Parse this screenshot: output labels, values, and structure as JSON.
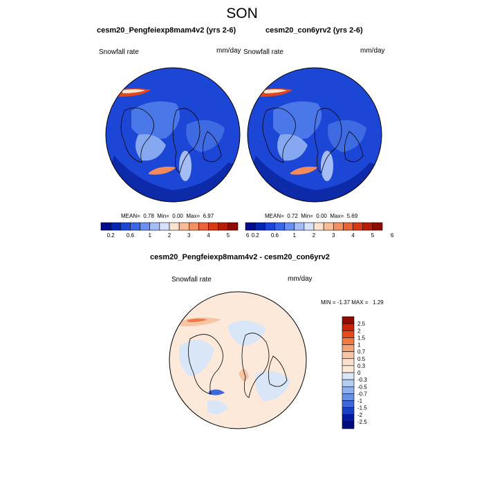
{
  "figure": {
    "title": "SON"
  },
  "chart_data": [
    {
      "type": "heatmap",
      "projection": "north-polar-stereographic",
      "title": "cesm20_Pengfeiexp8mam4v2 (yrs 2-6)",
      "left_label": "Snowfall rate",
      "units": "mm/day",
      "stats": {
        "mean_label": "MEAN=",
        "mean": "0.78",
        "min_label": "Min=",
        "min": "0.00",
        "max_label": "Max=",
        "max": "6.97"
      },
      "colorbar": {
        "levels": [
          "0.2",
          "0.6",
          "1",
          "2",
          "3",
          "4",
          "5",
          "6"
        ],
        "colors": [
          "#000b8d",
          "#0325b4",
          "#1b44d8",
          "#3a66e8",
          "#6b8ff0",
          "#a4bdf6",
          "#d6e2fb",
          "#fbe3d0",
          "#f8bc97",
          "#f39061",
          "#eb6336",
          "#d93a14",
          "#b81c05",
          "#8f0d00"
        ]
      }
    },
    {
      "type": "heatmap",
      "projection": "north-polar-stereographic",
      "title": "cesm20_con6yrv2 (yrs 2-6)",
      "left_label": "Snowfall rate",
      "units": "mm/day",
      "stats": {
        "mean_label": "MEAN=",
        "mean": "0.72",
        "min_label": "Min=",
        "min": "0.00",
        "max_label": "Max=",
        "max": "5.69"
      },
      "colorbar": {
        "levels": [
          "0.2",
          "0.6",
          "1",
          "2",
          "3",
          "4",
          "5",
          "6"
        ],
        "colors": [
          "#000b8d",
          "#0325b4",
          "#1b44d8",
          "#3a66e8",
          "#6b8ff0",
          "#a4bdf6",
          "#d6e2fb",
          "#fbe3d0",
          "#f8bc97",
          "#f39061",
          "#eb6336",
          "#d93a14",
          "#b81c05",
          "#8f0d00"
        ]
      }
    },
    {
      "type": "heatmap",
      "projection": "north-polar-stereographic",
      "title": "cesm20_Pengfeiexp8mam4v2 - cesm20_con6yrv2",
      "left_label": "Snowfall rate",
      "units": "mm/day",
      "stats": {
        "min_label": "MIN =",
        "min": "-1.37",
        "max_label": "MAX =",
        "max": "1.29"
      },
      "colorbar": {
        "orientation": "vertical",
        "levels": [
          "2.5",
          "2",
          "1.5",
          "1",
          "0.7",
          "0.5",
          "0.3",
          "0",
          "-0.3",
          "-0.5",
          "-0.7",
          "-1",
          "-1.5",
          "-2",
          "-2.5"
        ],
        "colors": [
          "#8f0d00",
          "#c92406",
          "#e44a1c",
          "#f07a43",
          "#f4a27a",
          "#f8c4a6",
          "#fbdfcc",
          "#fde9d9",
          "#d8e6f7",
          "#b6cdf2",
          "#8fb0ec",
          "#6890e4",
          "#3e68d9",
          "#1a3fc4",
          "#0519a0",
          "#000b80"
        ]
      }
    }
  ]
}
